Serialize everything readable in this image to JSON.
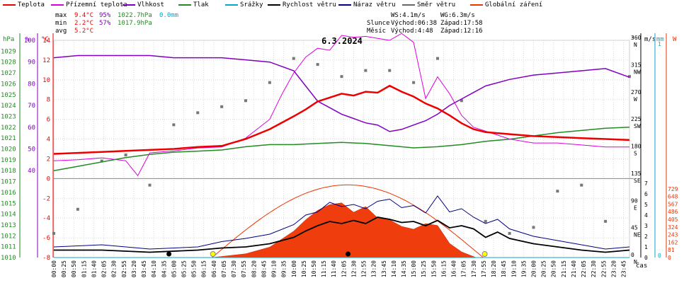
{
  "legend": [
    {
      "label": "Teplota",
      "color": "#ee0000"
    },
    {
      "label": "Přízemní teplota",
      "color": "#dd00dd"
    },
    {
      "label": "Vlhkost",
      "color": "#8000c0"
    },
    {
      "label": "Tlak",
      "color": "#228b22"
    },
    {
      "label": "Srážky",
      "color": "#00aacc"
    },
    {
      "label": "Rychlost větru",
      "color": "#000000"
    },
    {
      "label": "Náraz větru",
      "color": "#000080"
    },
    {
      "label": "Směr větru",
      "color": "#666666"
    },
    {
      "label": "Globální záření",
      "color": "#ee3300"
    }
  ],
  "stats": {
    "max": {
      "label": "max",
      "temp": "9.4°C",
      "hum": "95%",
      "press": "1022.7hPa",
      "rain": "0.0mm"
    },
    "min": {
      "label": "min",
      "temp": "2.2°C",
      "hum": "57%",
      "press": "1017.9hPa"
    },
    "avg": {
      "label": "avg",
      "temp": "5.2°C"
    },
    "ws": "WS:4.1m/s",
    "wg": "WG:6.3m/s",
    "sun": {
      "label": "Slunce",
      "rise": "Východ:06:38",
      "set": "Západ:17:58"
    },
    "moon": {
      "label": "Měsíc",
      "rise": "Východ:4:48",
      "set": "Západ:12:16"
    }
  },
  "chart_data": {
    "type": "line",
    "title": "6.3.2024",
    "xlabel": "čas",
    "x_ticks": [
      "00:00",
      "00:25",
      "00:50",
      "01:15",
      "01:40",
      "02:05",
      "02:30",
      "02:55",
      "03:20",
      "03:45",
      "04:10",
      "04:35",
      "05:00",
      "05:25",
      "05:50",
      "06:15",
      "06:40",
      "07:05",
      "07:30",
      "07:55",
      "08:20",
      "08:45",
      "09:10",
      "09:35",
      "10:00",
      "10:25",
      "10:50",
      "11:15",
      "11:40",
      "12:05",
      "12:30",
      "12:55",
      "13:20",
      "13:45",
      "14:10",
      "14:35",
      "15:00",
      "15:25",
      "15:50",
      "16:15",
      "16:40",
      "17:05",
      "17:30",
      "17:55",
      "18:20",
      "18:45",
      "19:10",
      "19:35",
      "20:00",
      "20:25",
      "20:50",
      "21:15",
      "21:40",
      "22:05",
      "22:30",
      "22:55",
      "23:20",
      "23:45"
    ],
    "axes": {
      "pressure": {
        "unit": "hPa",
        "color": "#228b22",
        "range": [
          1010,
          1030
        ],
        "ticks": [
          1010,
          1011,
          1012,
          1013,
          1014,
          1015,
          1016,
          1017,
          1018,
          1019,
          1020,
          1021,
          1022,
          1023,
          1024,
          1025,
          1026,
          1027,
          1028,
          1029
        ]
      },
      "humidity": {
        "unit": "%",
        "color": "#8000c0",
        "range": [
          0,
          100
        ],
        "ticks": [
          40,
          50,
          60,
          70,
          80,
          90,
          100
        ]
      },
      "temperature": {
        "unit": "°C",
        "color": "#ee0000",
        "range": [
          -8,
          14
        ],
        "ticks": [
          -8,
          -6,
          -4,
          -2,
          0,
          2,
          4,
          6,
          8,
          10,
          12,
          14
        ]
      },
      "direction": {
        "unit": "°",
        "color": "#666666",
        "ticks": [
          {
            "v": 360,
            "l": "N"
          },
          {
            "v": 315,
            "l": "NW"
          },
          {
            "v": 270,
            "l": "W"
          },
          {
            "v": 225,
            "l": "SW"
          },
          {
            "v": 180,
            "l": "S"
          },
          {
            "v": 135,
            "l": "SE"
          },
          {
            "v": 90,
            "l": "E"
          },
          {
            "v": 45,
            "l": "NE"
          },
          {
            "v": 0,
            "l": "N"
          }
        ]
      },
      "wind": {
        "unit": "m/s",
        "color": "#000000",
        "range": [
          0,
          8
        ],
        "ticks": [
          0,
          1,
          2,
          3,
          4,
          5,
          6,
          7
        ]
      },
      "rain": {
        "unit": "mm",
        "color": "#00aacc",
        "ticks": [
          0,
          1
        ]
      },
      "radiation": {
        "unit": "W",
        "color": "#ee3300",
        "range": [
          0,
          810
        ],
        "ticks": [
          0,
          81,
          162,
          243,
          324,
          405,
          486,
          567,
          648,
          729
        ]
      }
    },
    "series": [
      {
        "name": "Teplota",
        "unit": "°C",
        "hours": [
          0,
          1,
          2,
          3,
          4,
          5,
          6,
          7,
          8,
          9,
          10,
          10.5,
          11,
          11.5,
          12,
          12.5,
          13,
          13.5,
          14,
          14.5,
          15,
          15.5,
          16,
          16.5,
          17,
          17.5,
          18,
          19,
          20,
          21,
          22,
          23,
          24
        ],
        "values": [
          2.5,
          2.6,
          2.7,
          2.8,
          2.9,
          3.0,
          3.2,
          3.3,
          4.0,
          5.0,
          6.3,
          7.0,
          7.8,
          8.2,
          8.6,
          8.4,
          8.8,
          8.7,
          9.4,
          8.8,
          8.3,
          7.6,
          7.1,
          6.4,
          5.6,
          5.0,
          4.7,
          4.5,
          4.3,
          4.2,
          4.1,
          4.0,
          3.9
        ]
      },
      {
        "name": "Přízemní teplota",
        "unit": "°C",
        "hours": [
          0,
          1,
          2,
          3,
          3.5,
          4,
          5,
          6,
          7,
          8,
          9,
          9.5,
          10,
          10.5,
          11,
          11.5,
          12,
          12.5,
          13,
          13.5,
          14,
          14.5,
          15,
          15.5,
          16,
          16.5,
          17,
          17.5,
          18,
          19,
          20,
          21,
          22,
          23,
          24
        ],
        "values": [
          1.8,
          1.9,
          2.1,
          1.8,
          0.3,
          2.6,
          2.8,
          3.1,
          3.2,
          4.1,
          6.0,
          8.5,
          10.7,
          12.3,
          13.2,
          13.0,
          14.5,
          14.3,
          14.4,
          14.2,
          14.0,
          14.7,
          13.8,
          8.1,
          10.3,
          8.6,
          6.4,
          5.2,
          4.8,
          4.0,
          3.6,
          3.6,
          3.4,
          3.2,
          3.2
        ]
      },
      {
        "name": "Vlhkost",
        "unit": "%",
        "hours": [
          0,
          1,
          2,
          3,
          4,
          5,
          6,
          7,
          8,
          9,
          10,
          10.5,
          11,
          11.5,
          12,
          12.5,
          13,
          13.5,
          14,
          14.5,
          15,
          15.5,
          16,
          16.5,
          17,
          17.5,
          18,
          19,
          20,
          21,
          22,
          23,
          24
        ],
        "values": [
          92,
          93,
          93,
          93,
          93,
          92,
          92,
          92,
          91,
          90,
          86,
          79,
          72,
          69,
          66,
          64,
          62,
          61,
          58,
          59,
          61,
          63,
          66,
          70,
          73,
          76,
          79,
          82,
          84,
          85,
          86,
          87,
          83
        ]
      },
      {
        "name": "Tlak",
        "unit": "hPa",
        "hours": [
          0,
          1,
          2,
          3,
          4,
          5,
          6,
          7,
          8,
          9,
          10,
          11,
          12,
          13,
          14,
          15,
          16,
          17,
          18,
          19,
          20,
          21,
          22,
          23,
          24
        ],
        "values": [
          1018.0,
          1018.4,
          1018.8,
          1019.2,
          1019.5,
          1019.7,
          1019.8,
          1019.9,
          1020.2,
          1020.4,
          1020.4,
          1020.5,
          1020.6,
          1020.5,
          1020.3,
          1020.1,
          1020.2,
          1020.4,
          1020.7,
          1020.9,
          1021.2,
          1021.5,
          1021.7,
          1021.9,
          1022.0
        ]
      },
      {
        "name": "Srážky",
        "unit": "mm",
        "hours": [
          0,
          24
        ],
        "values": [
          0,
          0
        ]
      },
      {
        "name": "Rychlost větru",
        "unit": "m/s",
        "hours": [
          0,
          2,
          4,
          6,
          7,
          8,
          9,
          10,
          10.5,
          11,
          11.5,
          12,
          12.5,
          13,
          13.5,
          14,
          14.5,
          15,
          15.5,
          16,
          16.5,
          17,
          17.5,
          18,
          18.5,
          19,
          20,
          21,
          22,
          23,
          24
        ],
        "values": [
          0.7,
          0.7,
          0.5,
          0.7,
          0.9,
          1.0,
          1.3,
          1.9,
          2.5,
          3.0,
          3.4,
          3.2,
          3.5,
          3.2,
          3.8,
          3.6,
          3.3,
          3.4,
          3.0,
          3.5,
          2.8,
          3.0,
          2.7,
          1.9,
          2.4,
          1.8,
          1.3,
          1.0,
          0.7,
          0.5,
          0.7
        ]
      },
      {
        "name": "Náraz větru",
        "unit": "m/s",
        "hours": [
          0,
          2,
          4,
          6,
          7,
          8,
          9,
          10,
          10.5,
          11,
          11.5,
          12,
          12.5,
          13,
          13.5,
          14,
          14.5,
          15,
          15.5,
          16,
          16.5,
          17,
          17.5,
          18,
          18.5,
          19,
          20,
          21,
          22,
          23,
          24
        ],
        "values": [
          1.0,
          1.2,
          0.8,
          1.0,
          1.5,
          1.8,
          2.2,
          3.1,
          4.0,
          4.3,
          5.2,
          4.8,
          5.0,
          4.6,
          5.3,
          5.5,
          4.7,
          4.9,
          4.2,
          5.8,
          4.3,
          4.6,
          3.8,
          3.2,
          3.6,
          2.7,
          2.0,
          1.6,
          1.2,
          0.8,
          1.0
        ]
      },
      {
        "name": "Globální záření",
        "unit": "W/m²",
        "hours": [
          6.6,
          8,
          9,
          10,
          10.5,
          11,
          11.5,
          12,
          12.5,
          13,
          13.5,
          14,
          14.5,
          15,
          15.5,
          16,
          16.5,
          17,
          17.6
        ],
        "values": [
          0,
          40,
          110,
          280,
          400,
          500,
          560,
          580,
          480,
          540,
          420,
          400,
          330,
          300,
          360,
          340,
          150,
          60,
          0
        ]
      },
      {
        "name": "Směr větru",
        "unit": "°",
        "hours": [
          0,
          1,
          2,
          3,
          4,
          5,
          6,
          7,
          8,
          9,
          10,
          11,
          12,
          13,
          14,
          15,
          16,
          17,
          18,
          19,
          20,
          21,
          22,
          23,
          24
        ],
        "values": [
          40,
          80,
          160,
          170,
          120,
          220,
          240,
          250,
          260,
          290,
          330,
          320,
          300,
          310,
          310,
          290,
          330,
          260,
          60,
          40,
          50,
          110,
          120,
          60,
          300
        ]
      }
    ],
    "clear_sky_radiation": {
      "unit": "W/m²",
      "hours": [
        6.6,
        12.2,
        17.9
      ],
      "values": [
        0,
        770,
        0
      ]
    }
  }
}
